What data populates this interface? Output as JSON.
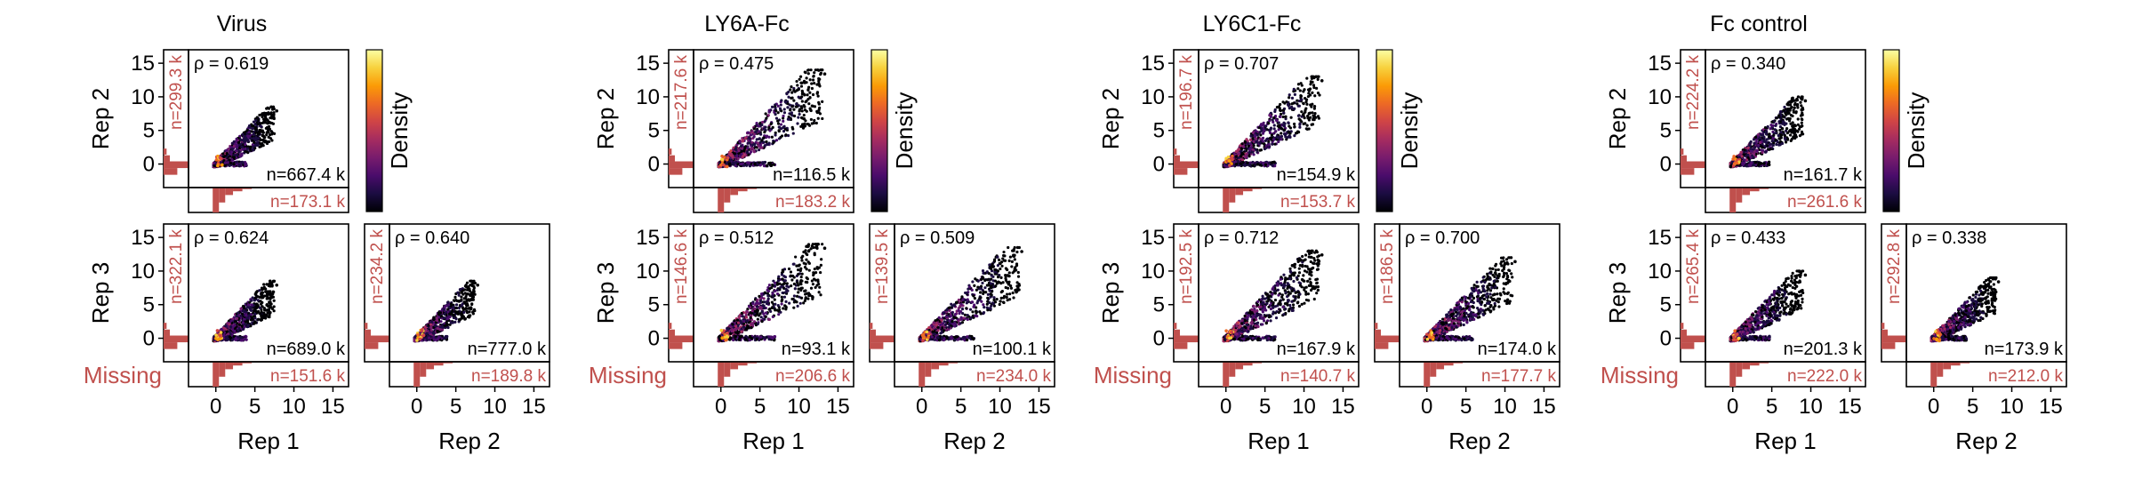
{
  "colors": {
    "missing": "#c0504d",
    "frame": "#000000",
    "colormap": [
      "#000004",
      "#1b0c41",
      "#4a0c6b",
      "#781c6d",
      "#a52c60",
      "#cf4446",
      "#ed6925",
      "#fb9b06",
      "#f7d13d",
      "#fcffa4"
    ]
  },
  "labels": {
    "rep1": "Rep 1",
    "rep2": "Rep 2",
    "rep3": "Rep 3",
    "missing": "Missing",
    "density": "Density"
  },
  "chart_data": [
    {
      "type": "scatter",
      "title": "Virus",
      "axis_ticks": [
        0,
        5,
        10,
        15
      ],
      "xlim": [
        -3.5,
        17
      ],
      "ylim": [
        -3.5,
        17
      ],
      "pairs": [
        {
          "x": "Rep 1",
          "y": "Rep 2",
          "rho": "ρ = 0.619",
          "n": "n=667.4 k",
          "missing_y": "n=299.3 k",
          "missing_x": "n=173.1 k",
          "max_x": 7.5
        },
        {
          "x": "Rep 1",
          "y": "Rep 3",
          "rho": "ρ = 0.624",
          "n": "n=689.0 k",
          "missing_y": "n=322.1 k",
          "missing_x": "n=151.6 k",
          "max_x": 7.5
        },
        {
          "x": "Rep 2",
          "y": "Rep 3",
          "rho": "ρ = 0.640",
          "n": "n=777.0 k",
          "missing_y": "n=234.2 k",
          "missing_x": "n=189.8 k",
          "max_x": 7.5
        }
      ]
    },
    {
      "type": "scatter",
      "title": "LY6A-Fc",
      "axis_ticks": [
        0,
        5,
        10,
        15
      ],
      "xlim": [
        -3.5,
        17
      ],
      "ylim": [
        -3.5,
        17
      ],
      "pairs": [
        {
          "x": "Rep 1",
          "y": "Rep 2",
          "rho": "ρ = 0.475",
          "n": "n=116.5 k",
          "missing_y": "n=217.6 k",
          "missing_x": "n=183.2 k",
          "max_x": 13
        },
        {
          "x": "Rep 1",
          "y": "Rep 3",
          "rho": "ρ = 0.512",
          "n": "n=93.1 k",
          "missing_y": "n=146.6 k",
          "missing_x": "n=206.6 k",
          "max_x": 13
        },
        {
          "x": "Rep 2",
          "y": "Rep 3",
          "rho": "ρ = 0.509",
          "n": "n=100.1 k",
          "missing_y": "n=139.5 k",
          "missing_x": "n=234.0 k",
          "max_x": 12.5
        }
      ]
    },
    {
      "type": "scatter",
      "title": "LY6C1-Fc",
      "axis_ticks": [
        0,
        5,
        10,
        15
      ],
      "xlim": [
        -3.5,
        17
      ],
      "ylim": [
        -3.5,
        17
      ],
      "pairs": [
        {
          "x": "Rep 1",
          "y": "Rep 2",
          "rho": "ρ = 0.707",
          "n": "n=154.9 k",
          "missing_y": "n=196.7 k",
          "missing_x": "n=153.7 k",
          "max_x": 12
        },
        {
          "x": "Rep 1",
          "y": "Rep 3",
          "rho": "ρ = 0.712",
          "n": "n=167.9 k",
          "missing_y": "n=192.5 k",
          "missing_x": "n=140.7 k",
          "max_x": 12
        },
        {
          "x": "Rep 2",
          "y": "Rep 3",
          "rho": "ρ = 0.700",
          "n": "n=174.0 k",
          "missing_y": "n=186.5 k",
          "missing_x": "n=177.7 k",
          "max_x": 11
        }
      ]
    },
    {
      "type": "scatter",
      "title": "Fc control",
      "axis_ticks": [
        0,
        5,
        10,
        15
      ],
      "xlim": [
        -3.5,
        17
      ],
      "ylim": [
        -3.5,
        17
      ],
      "pairs": [
        {
          "x": "Rep 1",
          "y": "Rep 2",
          "rho": "ρ = 0.340",
          "n": "n=161.7 k",
          "missing_y": "n=224.2 k",
          "missing_x": "n=261.6 k",
          "max_x": 9
        },
        {
          "x": "Rep 1",
          "y": "Rep 3",
          "rho": "ρ = 0.433",
          "n": "n=201.3 k",
          "missing_y": "n=265.4 k",
          "missing_x": "n=222.0 k",
          "max_x": 9
        },
        {
          "x": "Rep 2",
          "y": "Rep 3",
          "rho": "ρ = 0.338",
          "n": "n=173.9 k",
          "missing_y": "n=292.8 k",
          "missing_x": "n=212.0 k",
          "max_x": 8
        }
      ]
    }
  ]
}
